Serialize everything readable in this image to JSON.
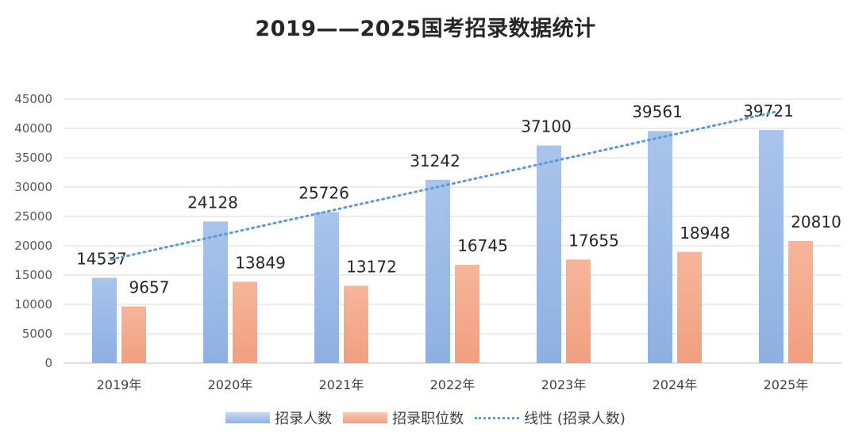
{
  "chart_data": {
    "type": "bar",
    "title": "2019——2025国考招录数据统计",
    "categories": [
      "2019年",
      "2020年",
      "2021年",
      "2022年",
      "2023年",
      "2024年",
      "2025年"
    ],
    "series": [
      {
        "name": "招录人数",
        "values": [
          14537,
          24128,
          25726,
          31242,
          37100,
          39561,
          39721
        ],
        "color": "#9dbbe8"
      },
      {
        "name": "招录职位数",
        "values": [
          9657,
          13849,
          13172,
          16745,
          17655,
          18948,
          20810
        ],
        "color": "#f4ad90"
      }
    ],
    "trendline": {
      "name": "线性 (招录人数)",
      "of_series": "招录人数",
      "type": "linear",
      "color": "#5b9bd5"
    },
    "ylim": [
      0,
      45000
    ],
    "yticks": [
      0,
      5000,
      10000,
      15000,
      20000,
      25000,
      30000,
      35000,
      40000,
      45000
    ],
    "grid": true,
    "legend_position": "bottom"
  }
}
